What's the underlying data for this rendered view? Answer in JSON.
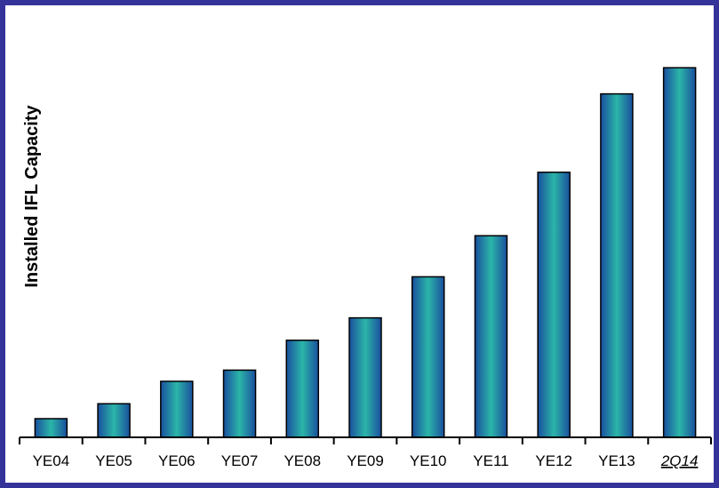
{
  "chart_data": {
    "type": "bar",
    "title": "",
    "xlabel": "",
    "ylabel": "Installed IFL Capacity",
    "categories": [
      "YE04",
      "YE05",
      "YE06",
      "YE07",
      "YE08",
      "YE09",
      "YE10",
      "YE11",
      "YE12",
      "YE13",
      "2Q14"
    ],
    "emphasized_categories": [
      "2Q14"
    ],
    "values": [
      5,
      9,
      15,
      18,
      26,
      32,
      43,
      54,
      71,
      92,
      99
    ],
    "ylim": [
      0,
      100
    ],
    "y_axis_visible": false,
    "grid": false,
    "legend": "none",
    "bar_gradient": [
      "#1a4f9e",
      "#2bb5a8",
      "#1a4f9e"
    ]
  }
}
